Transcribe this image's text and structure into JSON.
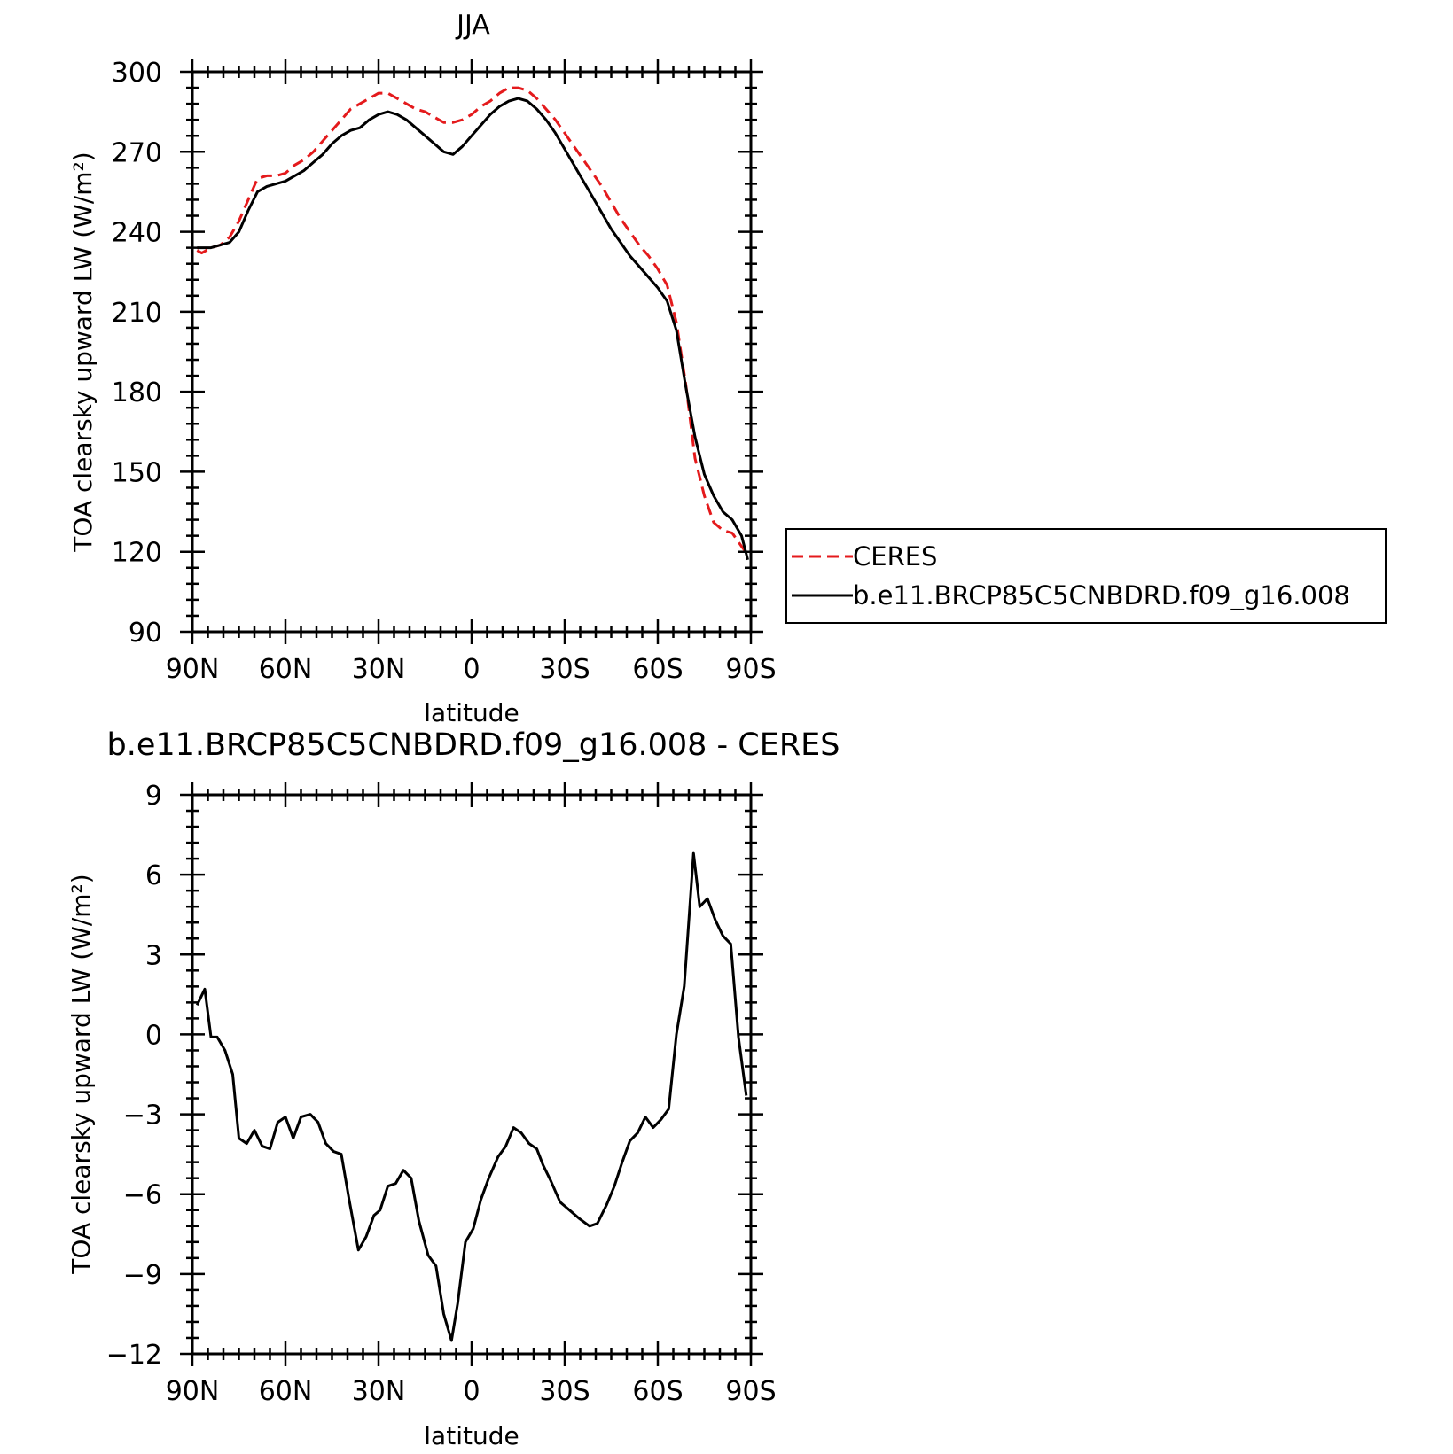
{
  "chart_data": [
    {
      "type": "line",
      "title": "JJA",
      "xlabel": "latitude",
      "ylabel": "TOA clearsky upward LW (W/m²)",
      "xlim": [
        -90,
        90
      ],
      "ylim": [
        90,
        300
      ],
      "x_ticks": [
        -90,
        -60,
        -30,
        0,
        30,
        60,
        90
      ],
      "x_tick_labels": [
        "90N",
        "60N",
        "30N",
        "0",
        "30S",
        "60S",
        "90S"
      ],
      "y_ticks": [
        90,
        120,
        150,
        180,
        210,
        240,
        270,
        300
      ],
      "y_tick_labels": [
        "90",
        "120",
        "150",
        "180",
        "210",
        "240",
        "270",
        "300"
      ],
      "grid": false,
      "legend": {
        "placement": "right",
        "entries": [
          "CERES",
          "b.e11.BRCP85C5CNBDRD.f09_g16.008"
        ]
      },
      "series": [
        {
          "name": "CERES",
          "color": "#e41a1c",
          "dash": "dashed",
          "points": [
            [
              -88.5,
              233
            ],
            [
              -87,
              232
            ],
            [
              -84,
              234
            ],
            [
              -81,
              235
            ],
            [
              -78,
              238
            ],
            [
              -75,
              244
            ],
            [
              -72,
              252
            ],
            [
              -69,
              260
            ],
            [
              -66,
              261
            ],
            [
              -63,
              261
            ],
            [
              -60,
              262
            ],
            [
              -57,
              265
            ],
            [
              -54,
              267
            ],
            [
              -51,
              270
            ],
            [
              -48,
              274
            ],
            [
              -45,
              278
            ],
            [
              -42,
              282
            ],
            [
              -39,
              286
            ],
            [
              -36,
              288
            ],
            [
              -33,
              290
            ],
            [
              -30,
              292
            ],
            [
              -27,
              292
            ],
            [
              -24,
              290
            ],
            [
              -21,
              288
            ],
            [
              -18,
              286
            ],
            [
              -15,
              285
            ],
            [
              -12,
              283
            ],
            [
              -9,
              281
            ],
            [
              -6,
              281
            ],
            [
              -3,
              282
            ],
            [
              0,
              284
            ],
            [
              3,
              287
            ],
            [
              6,
              289
            ],
            [
              9,
              292
            ],
            [
              12,
              294
            ],
            [
              15,
              294
            ],
            [
              18,
              293
            ],
            [
              21,
              290
            ],
            [
              24,
              286
            ],
            [
              27,
              282
            ],
            [
              30,
              277
            ],
            [
              33,
              272
            ],
            [
              36,
              267
            ],
            [
              39,
              262
            ],
            [
              42,
              257
            ],
            [
              45,
              251
            ],
            [
              48,
              245
            ],
            [
              51,
              240
            ],
            [
              54,
              235
            ],
            [
              57,
              231
            ],
            [
              60,
              226
            ],
            [
              63,
              220
            ],
            [
              66,
              206
            ],
            [
              69,
              183
            ],
            [
              72,
              155
            ],
            [
              75,
              141
            ],
            [
              78,
              131
            ],
            [
              81,
              128
            ],
            [
              84,
              127
            ],
            [
              87,
              122
            ],
            [
              89,
              119
            ]
          ]
        },
        {
          "name": "b.e11.BRCP85C5CNBDRD.f09_g16.008",
          "color": "#000000",
          "dash": "solid",
          "points": [
            [
              -88.5,
              234
            ],
            [
              -87,
              234
            ],
            [
              -84,
              234
            ],
            [
              -81,
              235
            ],
            [
              -78,
              236
            ],
            [
              -75,
              240
            ],
            [
              -72,
              248
            ],
            [
              -69,
              255
            ],
            [
              -66,
              257
            ],
            [
              -63,
              258
            ],
            [
              -60,
              259
            ],
            [
              -57,
              261
            ],
            [
              -54,
              263
            ],
            [
              -51,
              266
            ],
            [
              -48,
              269
            ],
            [
              -45,
              273
            ],
            [
              -42,
              276
            ],
            [
              -39,
              278
            ],
            [
              -36,
              279
            ],
            [
              -33,
              282
            ],
            [
              -30,
              284
            ],
            [
              -27,
              285
            ],
            [
              -24,
              284
            ],
            [
              -21,
              282
            ],
            [
              -18,
              279
            ],
            [
              -15,
              276
            ],
            [
              -12,
              273
            ],
            [
              -9,
              270
            ],
            [
              -6,
              269
            ],
            [
              -3,
              272
            ],
            [
              0,
              276
            ],
            [
              3,
              280
            ],
            [
              6,
              284
            ],
            [
              9,
              287
            ],
            [
              12,
              289
            ],
            [
              15,
              290
            ],
            [
              18,
              289
            ],
            [
              21,
              286
            ],
            [
              24,
              282
            ],
            [
              27,
              277
            ],
            [
              30,
              271
            ],
            [
              33,
              265
            ],
            [
              36,
              259
            ],
            [
              39,
              253
            ],
            [
              42,
              247
            ],
            [
              45,
              241
            ],
            [
              48,
              236
            ],
            [
              51,
              231
            ],
            [
              54,
              227
            ],
            [
              57,
              223
            ],
            [
              60,
              219
            ],
            [
              63,
              214
            ],
            [
              66,
              203
            ],
            [
              69,
              182
            ],
            [
              72,
              163
            ],
            [
              75,
              149
            ],
            [
              78,
              141
            ],
            [
              81,
              135
            ],
            [
              84,
              132
            ],
            [
              87,
              126
            ],
            [
              89,
              117
            ]
          ]
        }
      ]
    },
    {
      "type": "line",
      "title": "b.e11.BRCP85C5CNBDRD.f09_g16.008 - CERES",
      "xlabel": "latitude",
      "ylabel": "TOA clearsky upward LW (W/m²)",
      "xlim": [
        -90,
        90
      ],
      "ylim": [
        -12,
        9
      ],
      "x_ticks": [
        -90,
        -60,
        -30,
        0,
        30,
        60,
        90
      ],
      "x_tick_labels": [
        "90N",
        "60N",
        "30N",
        "0",
        "30S",
        "60S",
        "90S"
      ],
      "y_ticks": [
        -12,
        -9,
        -6,
        -3,
        0,
        3,
        6,
        9
      ],
      "y_tick_labels": [
        "−12",
        "−9",
        "−6",
        "−3",
        "0",
        "3",
        "6",
        "9"
      ],
      "grid": false,
      "series": [
        {
          "color": "#000000",
          "dash": "solid",
          "points": [
            [
              -88.5,
              1.1
            ],
            [
              -86,
              1.7
            ],
            [
              -84,
              -0.1
            ],
            [
              -82,
              -0.1
            ],
            [
              -79.5,
              -0.6
            ],
            [
              -77,
              -1.5
            ],
            [
              -75,
              -3.9
            ],
            [
              -72.5,
              -4.1
            ],
            [
              -70,
              -3.6
            ],
            [
              -67.5,
              -4.2
            ],
            [
              -65,
              -4.3
            ],
            [
              -62.5,
              -3.3
            ],
            [
              -60,
              -3.1
            ],
            [
              -57.5,
              -3.9
            ],
            [
              -55,
              -3.1
            ],
            [
              -52,
              -3.0
            ],
            [
              -49.5,
              -3.3
            ],
            [
              -47,
              -4.1
            ],
            [
              -44.5,
              -4.4
            ],
            [
              -42,
              -4.5
            ],
            [
              -39.5,
              -6.2
            ],
            [
              -36.5,
              -8.1
            ],
            [
              -34,
              -7.6
            ],
            [
              -31.5,
              -6.8
            ],
            [
              -29.5,
              -6.6
            ],
            [
              -27,
              -5.7
            ],
            [
              -24.5,
              -5.6
            ],
            [
              -22,
              -5.1
            ],
            [
              -19.5,
              -5.4
            ],
            [
              -17,
              -7.0
            ],
            [
              -14,
              -8.3
            ],
            [
              -11.5,
              -8.7
            ],
            [
              -9,
              -10.5
            ],
            [
              -6.5,
              -11.5
            ],
            [
              -4.5,
              -10.1
            ],
            [
              -2,
              -7.8
            ],
            [
              0.5,
              -7.3
            ],
            [
              3,
              -6.2
            ],
            [
              5.5,
              -5.4
            ],
            [
              8.5,
              -4.6
            ],
            [
              11,
              -4.2
            ],
            [
              13.5,
              -3.5
            ],
            [
              16,
              -3.7
            ],
            [
              18.5,
              -4.1
            ],
            [
              21,
              -4.3
            ],
            [
              23,
              -4.9
            ],
            [
              25.5,
              -5.5
            ],
            [
              28.5,
              -6.3
            ],
            [
              31.5,
              -6.6
            ],
            [
              34.5,
              -6.9
            ],
            [
              38,
              -7.2
            ],
            [
              40.5,
              -7.1
            ],
            [
              43.5,
              -6.4
            ],
            [
              46,
              -5.7
            ],
            [
              48.5,
              -4.8
            ],
            [
              51,
              -4.0
            ],
            [
              53.5,
              -3.7
            ],
            [
              56,
              -3.1
            ],
            [
              58.5,
              -3.5
            ],
            [
              61,
              -3.2
            ],
            [
              63.5,
              -2.8
            ],
            [
              66,
              0.0
            ],
            [
              68.5,
              1.8
            ],
            [
              71.5,
              6.8
            ],
            [
              73.5,
              4.8
            ],
            [
              76,
              5.1
            ],
            [
              78.5,
              4.3
            ],
            [
              81,
              3.7
            ],
            [
              83.5,
              3.4
            ],
            [
              86,
              -0.1
            ],
            [
              88.5,
              -2.3
            ]
          ]
        }
      ]
    }
  ]
}
